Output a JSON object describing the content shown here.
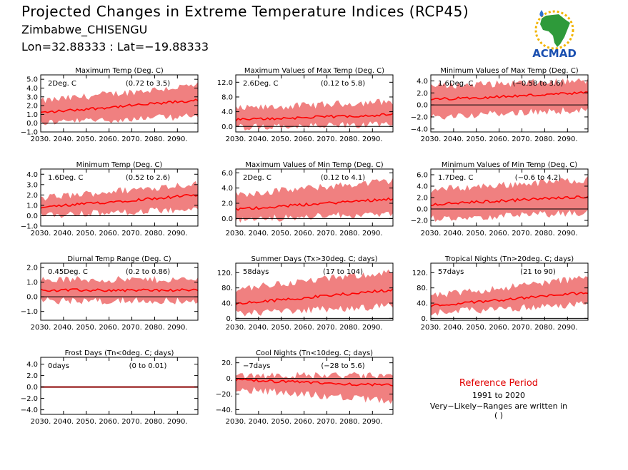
{
  "header": {
    "title": "Projected Changes in Extreme Temperature Indices (RCP45)",
    "location": "Zimbabwe_CHISENGU",
    "coords": "Lon=32.88333 : Lat=−19.88333"
  },
  "logo": {
    "text": "ACMAD",
    "icon": "africa-map-icon"
  },
  "reference": {
    "title": "Reference Period",
    "years": "1991 to 2020",
    "note": "Very−Likely−Ranges are written in ( )"
  },
  "colors": {
    "band": "#f08080",
    "line": "#ff0000",
    "zero": "#000000",
    "frost": "#8b0000"
  },
  "chart_data": [
    {
      "type": "line",
      "title": "Maximum Temp (Deg. C)",
      "label": "2Deg. C",
      "range": "(0.72 to 3.5)",
      "ylim": [
        -1.0,
        5.5
      ],
      "yticks": [
        -1.0,
        0.0,
        1.0,
        2.0,
        3.0,
        4.0,
        5.0
      ],
      "ytick_labels": [
        "−1.0",
        "0.0",
        "1.0",
        "2.0",
        "3.0",
        "4.0",
        "5.0"
      ],
      "xticks": [
        2030,
        2040,
        2050,
        2060,
        2070,
        2080,
        2090
      ],
      "xtick_labels": [
        "2030.",
        "2040.",
        "2050.",
        "2060.",
        "2070.",
        "2080.",
        "2090."
      ],
      "start": 2030,
      "end": 2099,
      "median": [
        1.2,
        2.6
      ],
      "low": [
        0.2,
        0.9
      ],
      "high": [
        2.4,
        4.2
      ]
    },
    {
      "type": "line",
      "title": "Maximum Values of Max Temp (Deg. C)",
      "label": "2.6Deg. C",
      "range": "(0.12 to 5.8)",
      "ylim": [
        -1.5,
        14.0
      ],
      "yticks": [
        0.0,
        4.0,
        8.0,
        12.0
      ],
      "ytick_labels": [
        "0.0",
        "4.0",
        "8.0",
        "12.0"
      ],
      "xticks": [
        2030,
        2040,
        2050,
        2060,
        2070,
        2080,
        2090
      ],
      "xtick_labels": [
        "2030.",
        "2040.",
        "2050.",
        "2060.",
        "2070.",
        "2080.",
        "2090."
      ],
      "start": 2030,
      "end": 2099,
      "median": [
        1.8,
        3.2
      ],
      "low": [
        0.0,
        0.8
      ],
      "high": [
        4.5,
        6.5
      ]
    },
    {
      "type": "line",
      "title": "Minimum Values of Max Temp (Deg. C)",
      "label": "1.6Deg. C",
      "range": "(−0.58 to 3.6)",
      "ylim": [
        -4.5,
        5.0
      ],
      "yticks": [
        -4.0,
        -2.0,
        0.0,
        2.0,
        4.0
      ],
      "ytick_labels": [
        "−4.0",
        "−2.0",
        "0.0",
        "2.0",
        "4.0"
      ],
      "xticks": [
        2030,
        2040,
        2050,
        2060,
        2070,
        2080,
        2090
      ],
      "xtick_labels": [
        "2030.",
        "2040.",
        "2050.",
        "2060.",
        "2070.",
        "2080.",
        "2090."
      ],
      "start": 2030,
      "end": 2099,
      "median": [
        0.9,
        2.0
      ],
      "low": [
        -1.8,
        -0.6
      ],
      "high": [
        3.0,
        3.8
      ]
    },
    {
      "type": "line",
      "title": "Minimum Temp (Deg. C)",
      "label": "1.6Deg. C",
      "range": "(0.52 to 2.6)",
      "ylim": [
        -1.0,
        4.5
      ],
      "yticks": [
        -1.0,
        0.0,
        1.0,
        2.0,
        3.0,
        4.0
      ],
      "ytick_labels": [
        "−1.0",
        "0.0",
        "1.0",
        "2.0",
        "3.0",
        "4.0"
      ],
      "xticks": [
        2030,
        2040,
        2050,
        2060,
        2070,
        2080,
        2090
      ],
      "xtick_labels": [
        "2030.",
        "2040.",
        "2050.",
        "2060.",
        "2070.",
        "2080.",
        "2090."
      ],
      "start": 2030,
      "end": 2099,
      "median": [
        0.8,
        2.0
      ],
      "low": [
        0.1,
        0.7
      ],
      "high": [
        1.6,
        3.0
      ]
    },
    {
      "type": "line",
      "title": "Maximum Values of Min Temp (Deg. C)",
      "label": "2Deg. C",
      "range": "(0.12 to 4.1)",
      "ylim": [
        -1.0,
        6.5
      ],
      "yticks": [
        0.0,
        2.0,
        4.0,
        6.0
      ],
      "ytick_labels": [
        "0.0",
        "2.0",
        "4.0",
        "6.0"
      ],
      "xticks": [
        2030,
        2040,
        2050,
        2060,
        2070,
        2080,
        2090
      ],
      "xtick_labels": [
        "2030.",
        "2040.",
        "2050.",
        "2060.",
        "2070.",
        "2080.",
        "2090."
      ],
      "start": 2030,
      "end": 2099,
      "median": [
        1.2,
        2.6
      ],
      "low": [
        0.0,
        0.8
      ],
      "high": [
        3.0,
        4.8
      ]
    },
    {
      "type": "line",
      "title": "Minimum Values of Min Temp (Deg. C)",
      "label": "1.7Deg. C",
      "range": "(−0.6 to 4.2)",
      "ylim": [
        -3.0,
        7.0
      ],
      "yticks": [
        -2.0,
        0.0,
        2.0,
        4.0,
        6.0
      ],
      "ytick_labels": [
        "−2.0",
        "0.0",
        "2.0",
        "4.0",
        "6.0"
      ],
      "xticks": [
        2030,
        2040,
        2050,
        2060,
        2070,
        2080,
        2090
      ],
      "xtick_labels": [
        "2030.",
        "2040.",
        "2050.",
        "2060.",
        "2070.",
        "2080.",
        "2090."
      ],
      "start": 2030,
      "end": 2099,
      "median": [
        0.8,
        2.2
      ],
      "low": [
        -1.5,
        -0.5
      ],
      "high": [
        3.2,
        5.0
      ]
    },
    {
      "type": "line",
      "title": "Diurnal Temp Range (Deg. C)",
      "label": "0.45Deg. C",
      "range": "(0.2 to 0.86)",
      "ylim": [
        -1.6,
        2.3
      ],
      "yticks": [
        -1.0,
        0.0,
        1.0,
        2.0
      ],
      "ytick_labels": [
        "−1.0",
        "0.0",
        "1.0",
        "2.0"
      ],
      "xticks": [
        2030,
        2040,
        2050,
        2060,
        2070,
        2080,
        2090
      ],
      "xtick_labels": [
        "2030.",
        "2040.",
        "2050.",
        "2060.",
        "2070.",
        "2080.",
        "2090."
      ],
      "start": 2030,
      "end": 2099,
      "median": [
        0.45,
        0.45
      ],
      "low": [
        -0.2,
        -0.2
      ],
      "high": [
        1.1,
        1.1
      ]
    },
    {
      "type": "line",
      "title": "Summer Days (Tx>30deg. C; days)",
      "label": "58days",
      "range": "(17 to 104)",
      "ylim": [
        -5,
        145
      ],
      "yticks": [
        0,
        40,
        80,
        120
      ],
      "ytick_labels": [
        "0.",
        "40.",
        "80.",
        "120."
      ],
      "xticks": [
        2030,
        2040,
        2050,
        2060,
        2070,
        2080,
        2090
      ],
      "xtick_labels": [
        "2030.",
        "2040.",
        "2050.",
        "2060.",
        "2070.",
        "2080.",
        "2090."
      ],
      "start": 2030,
      "end": 2099,
      "median": [
        38,
        75
      ],
      "low": [
        15,
        35
      ],
      "high": [
        75,
        120
      ]
    },
    {
      "type": "line",
      "title": "Tropical Nights (Tn>20deg. C; days)",
      "label": "57days",
      "range": "(21 to 90)",
      "ylim": [
        -5,
        145
      ],
      "yticks": [
        0,
        40,
        80,
        120
      ],
      "ytick_labels": [
        "0.",
        "40.",
        "80.",
        "120."
      ],
      "xticks": [
        2030,
        2040,
        2050,
        2060,
        2070,
        2080,
        2090
      ],
      "xtick_labels": [
        "2030.",
        "2040.",
        "2050.",
        "2060.",
        "2070.",
        "2080.",
        "2090."
      ],
      "start": 2030,
      "end": 2099,
      "median": [
        33,
        68
      ],
      "low": [
        18,
        40
      ],
      "high": [
        55,
        105
      ]
    },
    {
      "type": "line",
      "title": "Frost Days (Tn<0deg. C; days)",
      "label": "0days",
      "range": "(0 to 0.01)",
      "ylim": [
        -4.8,
        5.2
      ],
      "yticks": [
        -4.0,
        -2.0,
        0.0,
        2.0,
        4.0
      ],
      "ytick_labels": [
        "−4.0",
        "−2.0",
        "0.0",
        "2.0",
        "4.0"
      ],
      "xticks": [
        2030,
        2040,
        2050,
        2060,
        2070,
        2080,
        2090
      ],
      "xtick_labels": [
        "2030.",
        "2040.",
        "2050.",
        "2060.",
        "2070.",
        "2080.",
        "2090."
      ],
      "start": 2030,
      "end": 2099,
      "median": [
        0,
        0
      ],
      "low": [
        0,
        0
      ],
      "high": [
        0,
        0
      ]
    },
    {
      "type": "line",
      "title": "Cool Nights (Tn<10deg. C; days)",
      "label": "−7days",
      "range": "(−28 to 5.6)",
      "ylim": [
        -46,
        27
      ],
      "yticks": [
        -40,
        -20,
        0,
        20
      ],
      "ytick_labels": [
        "−40.",
        "−20.",
        "0.",
        "20."
      ],
      "xticks": [
        2030,
        2040,
        2050,
        2060,
        2070,
        2080,
        2090
      ],
      "xtick_labels": [
        "2030.",
        "2040.",
        "2050.",
        "2060.",
        "2070.",
        "2080.",
        "2090."
      ],
      "start": 2030,
      "end": 2099,
      "median": [
        -2,
        -9
      ],
      "low": [
        -12,
        -28
      ],
      "high": [
        3,
        2
      ]
    }
  ]
}
